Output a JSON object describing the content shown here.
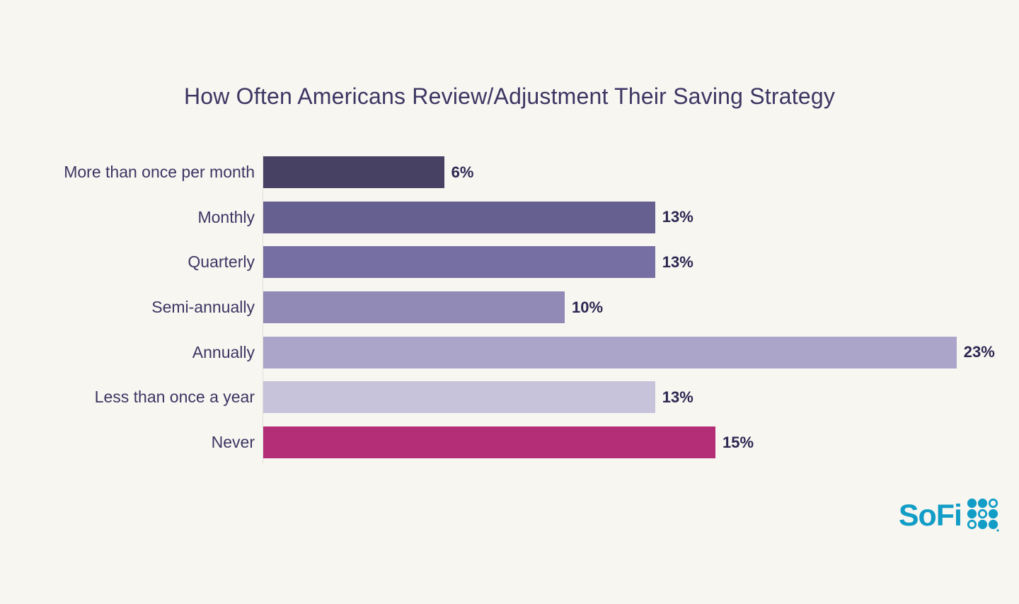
{
  "page": {
    "background_color": "#f8f6f1"
  },
  "chart_data": {
    "type": "bar",
    "orientation": "horizontal",
    "title": "How Often Americans Review/Adjustment Their Saving Strategy",
    "categories": [
      "More than once per month",
      "Monthly",
      "Quarterly",
      "Semi-annually",
      "Annually",
      "Less than once a year",
      "Never"
    ],
    "values": [
      6,
      13,
      13,
      10,
      23,
      13,
      15
    ],
    "value_labels": [
      "6%",
      "13%",
      "13%",
      "10%",
      "23%",
      "13%",
      "15%"
    ],
    "bar_colors": [
      "#474163",
      "#666091",
      "#766fa3",
      "#918ab7",
      "#aba6c9",
      "#c6c3da",
      "#b32e76"
    ],
    "xlim": [
      0,
      23
    ],
    "grid": false,
    "legend": "none",
    "value_label_position": "right-of-bar",
    "title_color": "#3c3663",
    "category_label_color": "#3c3663",
    "value_label_color": "#2c2751",
    "axis_line_color": "#e1ded8"
  },
  "branding": {
    "logo_text": "SoFi",
    "logo_color": "#129dc7",
    "logo_dot_grid": [
      [
        "filled",
        "filled",
        "ring"
      ],
      [
        "filled",
        "ring",
        "filled"
      ],
      [
        "ring",
        "filled",
        "filled"
      ]
    ]
  }
}
